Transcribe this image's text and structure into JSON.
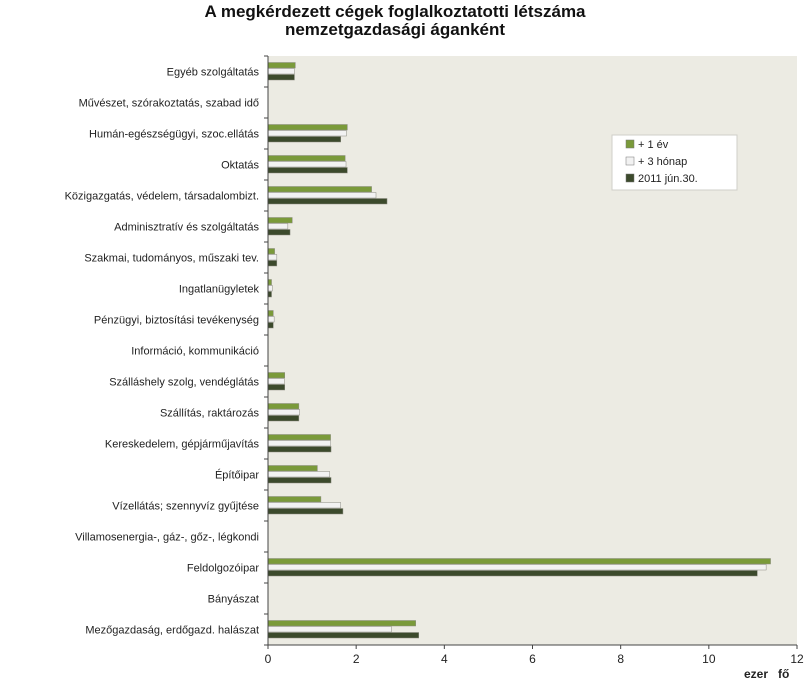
{
  "chart_data": {
    "type": "bar",
    "orientation": "horizontal",
    "title": [
      "A megkérdezett cégek foglalkoztatotti létszáma",
      "nemzetgazdasági áganként"
    ],
    "xlabel": "ezer   fő",
    "xlim": [
      0,
      12
    ],
    "xticks": [
      0,
      2,
      4,
      6,
      8,
      10,
      12
    ],
    "grid": false,
    "legend_position": "top-right",
    "categories": [
      "Egyéb szolgáltatás",
      "Művészet, szórakoztatás, szabad idő",
      "Humán-egészségügyi, szoc.ellátás",
      "Oktatás",
      "Közigazgatás, védelem, társadalombizt.",
      "Adminisztratív és szolgáltatás",
      "Szakmai, tudományos, műszaki tev.",
      "Ingatlanügyletek",
      "Pénzügyi, biztosítási tevékenység",
      "Információ, kommunikáció",
      "Szálláshely szolg, vendéglátás",
      "Szállítás, raktározás",
      "Kereskedelem, gépjárműjavítás",
      "Építőipar",
      "Vízellátás; szennyvíz gyűjtése",
      "Villamosenergia-, gáz-, gőz-, légkondi",
      "Feldolgozóipar",
      "Bányászat",
      "Mezőgazdaság, erdőgazd. halászat"
    ],
    "series": [
      {
        "name": "+ 1 év",
        "color": "#7a9a3a",
        "values": [
          0.62,
          0,
          1.8,
          1.75,
          2.35,
          0.55,
          0.15,
          0.08,
          0.12,
          0,
          0.38,
          0.7,
          1.42,
          1.12,
          1.2,
          0,
          11.4,
          0,
          3.35
        ]
      },
      {
        "name": "+ 3 hónap",
        "color": "#f2f2f2",
        "values": [
          0.6,
          0,
          1.78,
          1.77,
          2.45,
          0.45,
          0.2,
          0.1,
          0.14,
          0,
          0.37,
          0.72,
          1.42,
          1.4,
          1.65,
          0,
          11.3,
          0,
          2.8
        ]
      },
      {
        "name": "2011 jún.30.",
        "color": "#3c4a2c",
        "values": [
          0.6,
          0,
          1.65,
          1.8,
          2.7,
          0.5,
          0.2,
          0.08,
          0.12,
          0,
          0.38,
          0.7,
          1.43,
          1.43,
          1.7,
          0,
          11.1,
          0,
          3.42
        ]
      }
    ]
  },
  "colors": {
    "plot_bg": "#ecebe3",
    "axis": "#444444"
  }
}
